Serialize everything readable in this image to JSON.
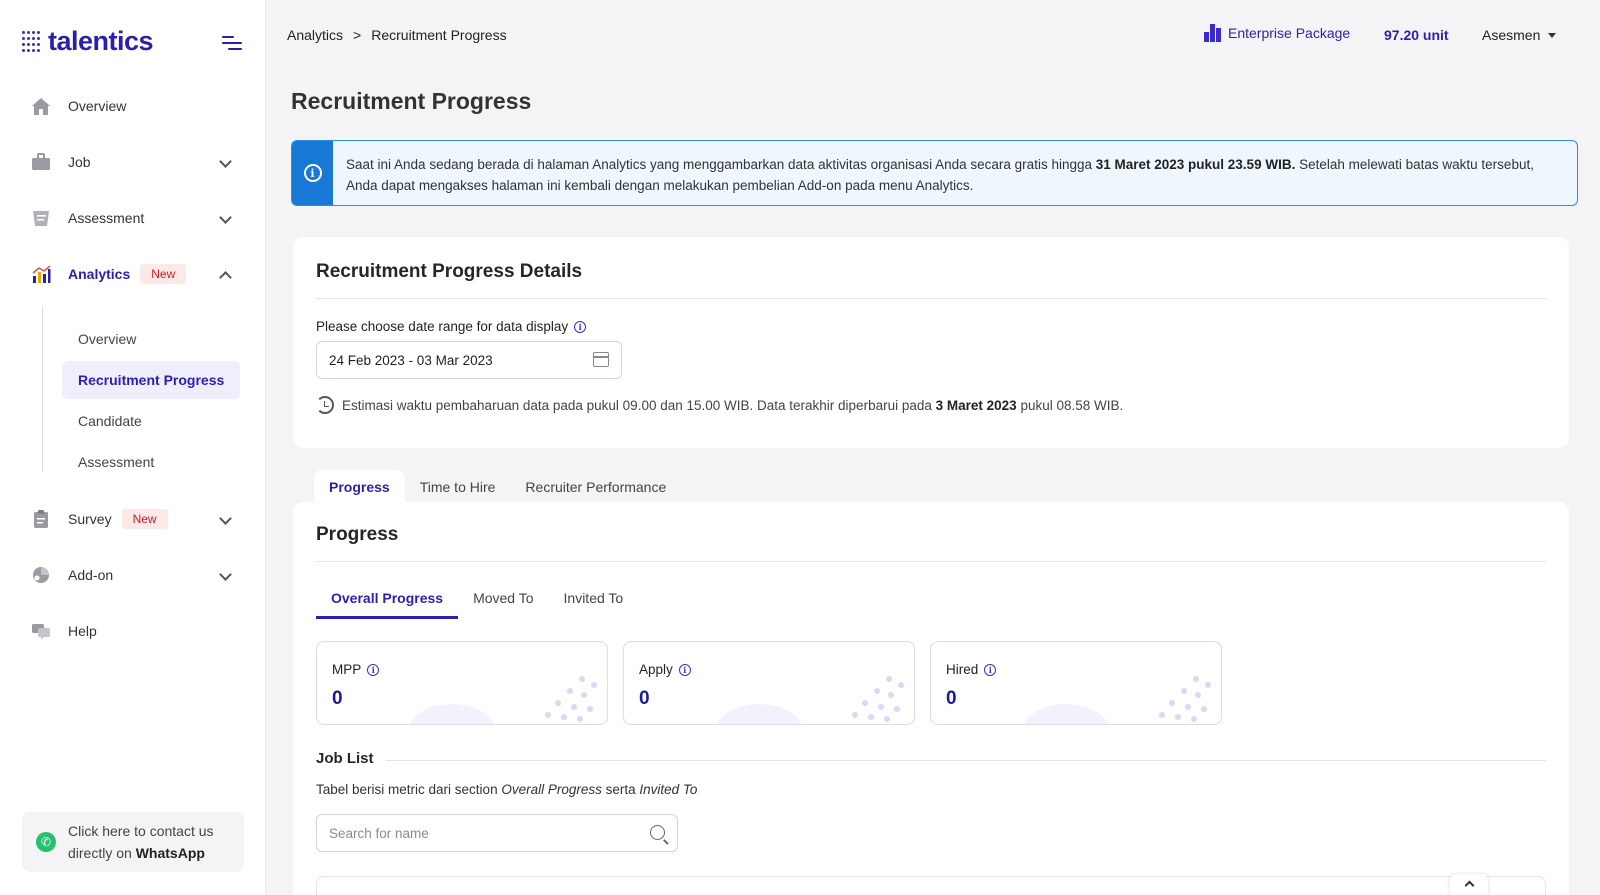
{
  "brand": {
    "name": "talentics"
  },
  "sidebar": {
    "items": [
      {
        "label": "Overview",
        "icon": "home-icon"
      },
      {
        "label": "Job",
        "icon": "briefcase-icon"
      },
      {
        "label": "Assessment",
        "icon": "assessment-icon"
      },
      {
        "label": "Analytics",
        "icon": "chart-icon",
        "badge": "New"
      },
      {
        "label": "Survey",
        "icon": "clipboard-icon",
        "badge": "New"
      },
      {
        "label": "Add-on",
        "icon": "puzzle-icon"
      },
      {
        "label": "Help",
        "icon": "chat-help-icon"
      }
    ],
    "analytics_sub": [
      {
        "label": "Overview"
      },
      {
        "label": "Recruitment Progress"
      },
      {
        "label": "Candidate"
      },
      {
        "label": "Assessment"
      }
    ],
    "whatsapp": {
      "line1": "Click here to contact us",
      "line2_prefix": "directly on",
      "line2_bold": "WhatsApp"
    }
  },
  "topbar": {
    "breadcrumb": [
      "Analytics",
      "Recruitment Progress"
    ],
    "package": "Enterprise Package",
    "units": "97.20 unit",
    "user": "Asesmen"
  },
  "page": {
    "title": "Recruitment Progress"
  },
  "banner": {
    "text_1": "Saat ini Anda sedang berada di halaman Analytics yang menggambarkan data aktivitas organisasi Anda secara gratis hingga ",
    "bold": "31 Maret 2023 pukul 23.59 WIB.",
    "text_2": " Setelah melewati batas waktu tersebut, Anda dapat mengakses halaman ini kembali dengan melakukan pembelian Add-on pada menu Analytics."
  },
  "details": {
    "title": "Recruitment Progress Details",
    "date_label": "Please choose date range for data display",
    "date_value": "24 Feb 2023 - 03 Mar 2023",
    "estimate_1": "Estimasi waktu pembaharuan data pada pukul 09.00 dan 15.00 WIB. Data terakhir diperbarui pada ",
    "estimate_bold": "3 Maret 2023",
    "estimate_2": " pukul 08.58 WIB."
  },
  "main_tabs": [
    "Progress",
    "Time to Hire",
    "Recruiter Performance"
  ],
  "progress": {
    "title": "Progress",
    "sub_tabs": [
      "Overall Progress",
      "Moved To",
      "Invited To"
    ],
    "metrics": [
      {
        "label": "MPP",
        "value": "0"
      },
      {
        "label": "Apply",
        "value": "0"
      },
      {
        "label": "Hired",
        "value": "0"
      }
    ],
    "job_list": {
      "title": "Job List",
      "desc_1": "Tabel berisi metric dari section ",
      "desc_em1": "Overall Progress",
      "desc_2": " serta ",
      "desc_em2": "Invited To"
    },
    "search": {
      "placeholder": "Search for name",
      "value": ""
    }
  },
  "colors": {
    "accent": "#2b1fb0",
    "info": "#1878d6",
    "badge_bg": "#fde8e8",
    "badge_fg": "#c81e1e"
  }
}
